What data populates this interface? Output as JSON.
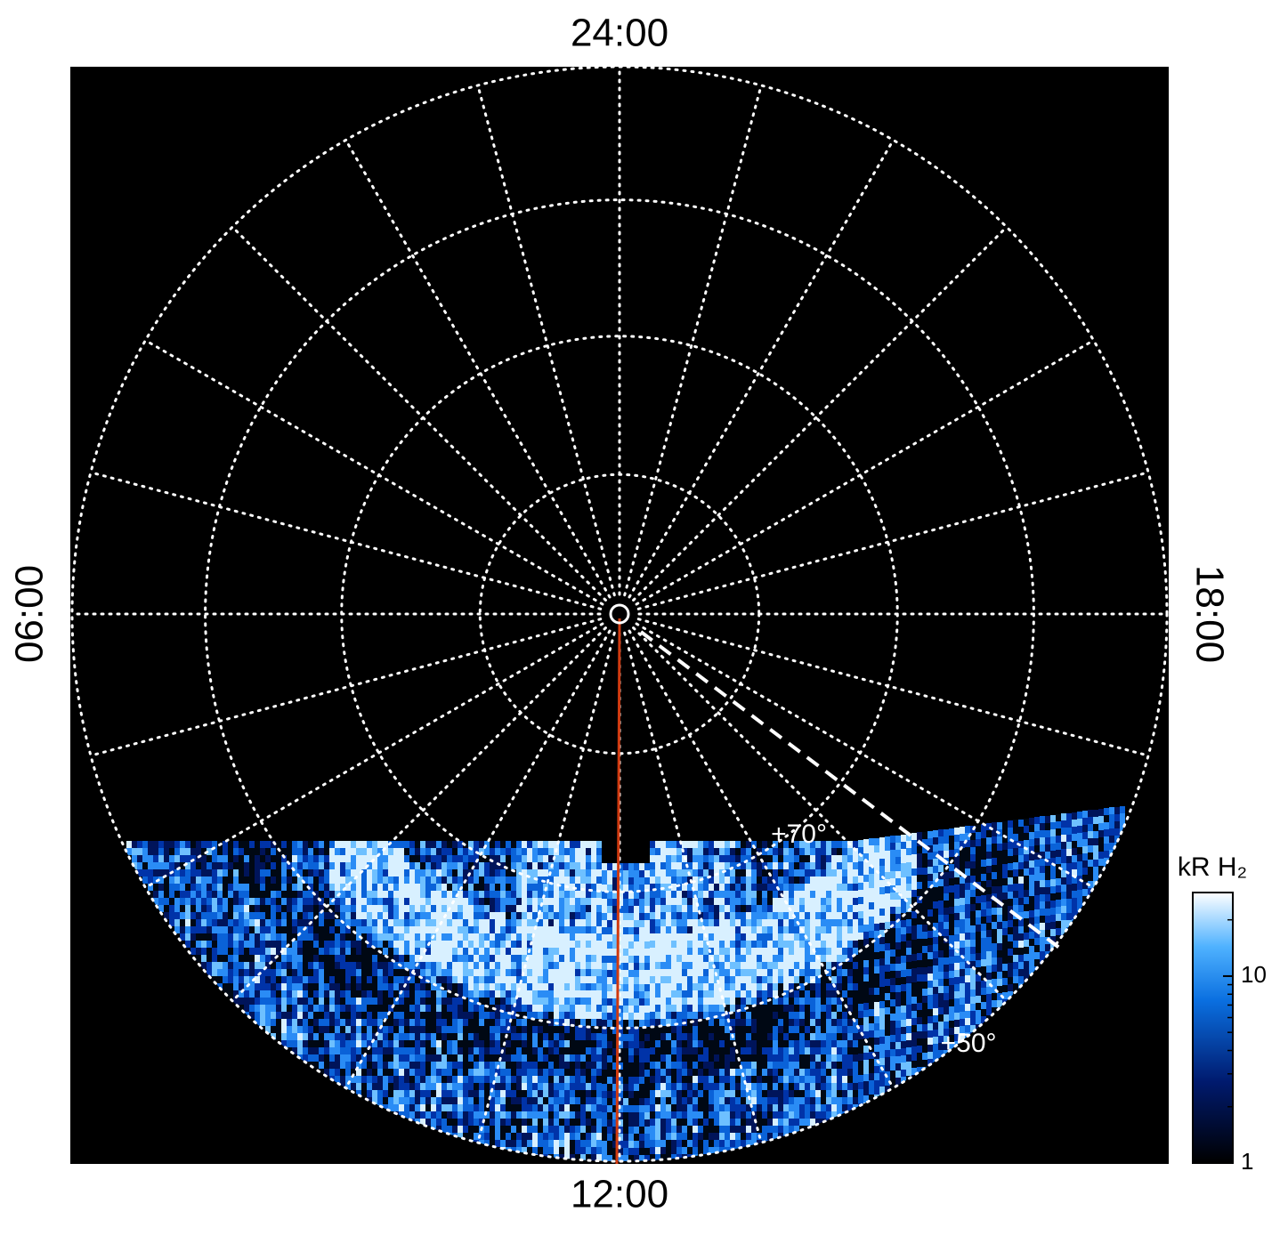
{
  "chart_data": {
    "type": "polar-image",
    "hour_ticks": [
      {
        "value": 0,
        "label": "24:00"
      },
      {
        "value": 6,
        "label": "06:00"
      },
      {
        "value": 12,
        "label": "12:00"
      },
      {
        "value": 18,
        "label": "18:00"
      }
    ],
    "lat_grid": [
      80,
      70,
      60,
      50
    ],
    "lat_labels": [
      {
        "value": 70,
        "label": "+70°"
      },
      {
        "value": 50,
        "label": "+50°"
      }
    ],
    "colorbar": {
      "label": "kR H₂",
      "log": true,
      "clim": [
        1,
        28
      ],
      "ticks": [
        1,
        10
      ]
    }
  }
}
